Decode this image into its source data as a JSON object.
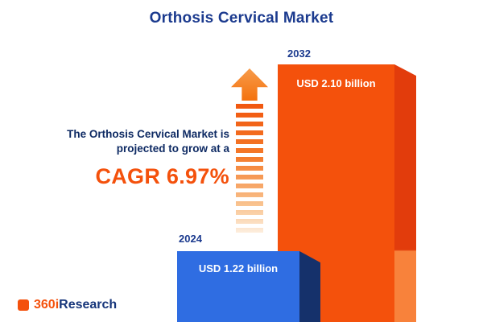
{
  "title": "Orthosis Cervical Market",
  "description": {
    "line1": "The Orthosis Cervical Market is",
    "line2": "projected to grow at a",
    "cagr_label": "CAGR 6.97%"
  },
  "logo": {
    "brand_orange": "360i",
    "brand_navy": "Research"
  },
  "chart_data": {
    "type": "bar",
    "title": "Orthosis Cervical Market",
    "categories": [
      "2024",
      "2032"
    ],
    "values": [
      1.22,
      2.1
    ],
    "value_labels": [
      "USD 1.22 billion",
      "USD 2.10 billion"
    ],
    "unit": "USD billion",
    "cagr_percent": 6.97,
    "legend_position": "none",
    "grid": false,
    "style": "3d-bars",
    "colors": {
      "bar_2024_front": "#2f6de2",
      "bar_2024_side": "#15316b",
      "bar_2032_front": "#f4510c",
      "bar_2032_side": "#e23c0c",
      "accent_orange": "#f4510c",
      "navy_text": "#1b3a8e"
    }
  }
}
